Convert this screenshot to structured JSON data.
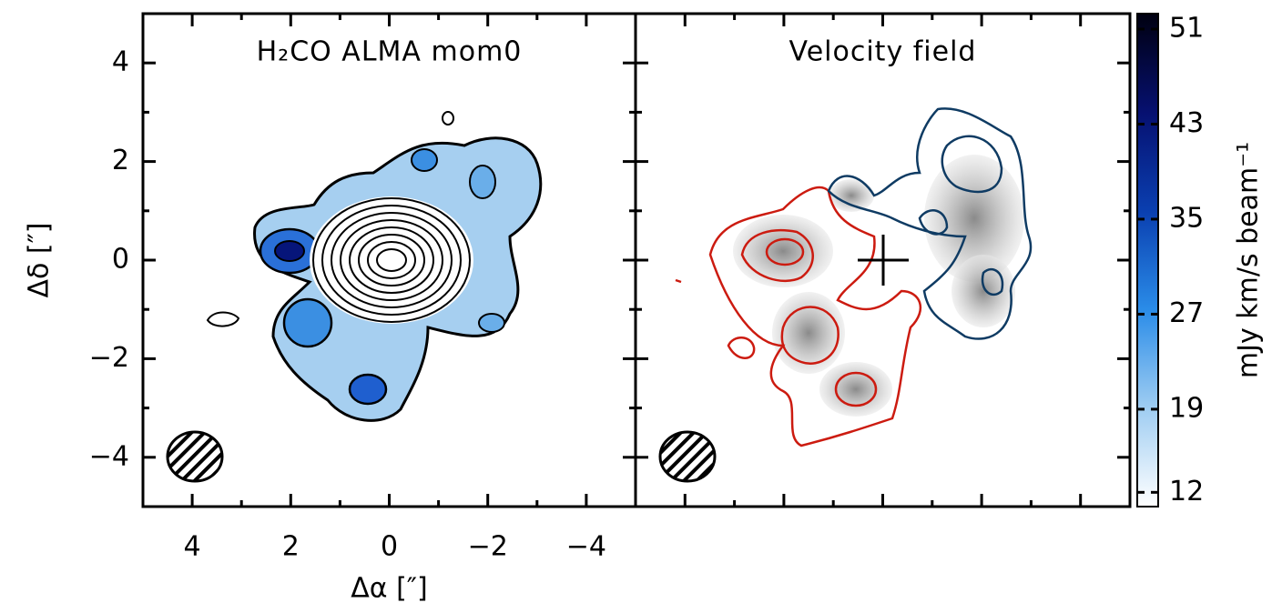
{
  "chart_data": [
    {
      "type": "image",
      "title": "H₂CO ALMA mom0",
      "x_label": "Δα [″]",
      "y_label": "Δδ [″]",
      "xlim": [
        5,
        -5
      ],
      "ylim": [
        -5,
        5
      ],
      "xticks": [
        4,
        2,
        0,
        {
          "value": -2,
          "label": "−2"
        },
        {
          "value": -4,
          "label": "−4"
        }
      ],
      "yticks": [
        {
          "value": -4,
          "label": "−4"
        },
        {
          "value": -2,
          "label": "−2"
        },
        0,
        2,
        4
      ],
      "tick_labels": true
    },
    {
      "type": "image",
      "title": "Velocity field",
      "xlim": [
        5,
        -5
      ],
      "ylim": [
        -5,
        5
      ],
      "xticks": [
        4,
        2,
        0,
        -2,
        -4
      ],
      "yticks": [
        -4,
        -2,
        0,
        2,
        4
      ],
      "tick_labels": false
    },
    {
      "type": "colorbar",
      "label": "mJy km/s beam⁻¹",
      "clim": [
        10.8,
        52.3
      ],
      "ticks": [
        12,
        19,
        27,
        35,
        43,
        51
      ]
    }
  ]
}
